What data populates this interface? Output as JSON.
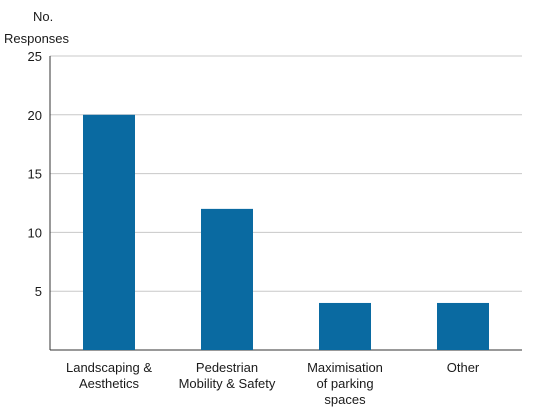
{
  "chart_data": {
    "type": "bar",
    "ylabel_lines": [
      "No.",
      "Responses"
    ],
    "categories": [
      [
        "Landscaping &",
        "Aesthetics"
      ],
      [
        "Pedestrian",
        "Mobility & Safety"
      ],
      [
        "Maximisation",
        "of parking",
        "spaces"
      ],
      [
        "Other"
      ]
    ],
    "values": [
      20,
      12,
      4,
      4
    ],
    "ylim": [
      0,
      25
    ],
    "yticks": [
      5,
      10,
      15,
      20,
      25
    ],
    "grid": true,
    "bar_color": "#0a6aa1",
    "grid_color": "#c8c8c8",
    "axis_color": "#333333"
  }
}
